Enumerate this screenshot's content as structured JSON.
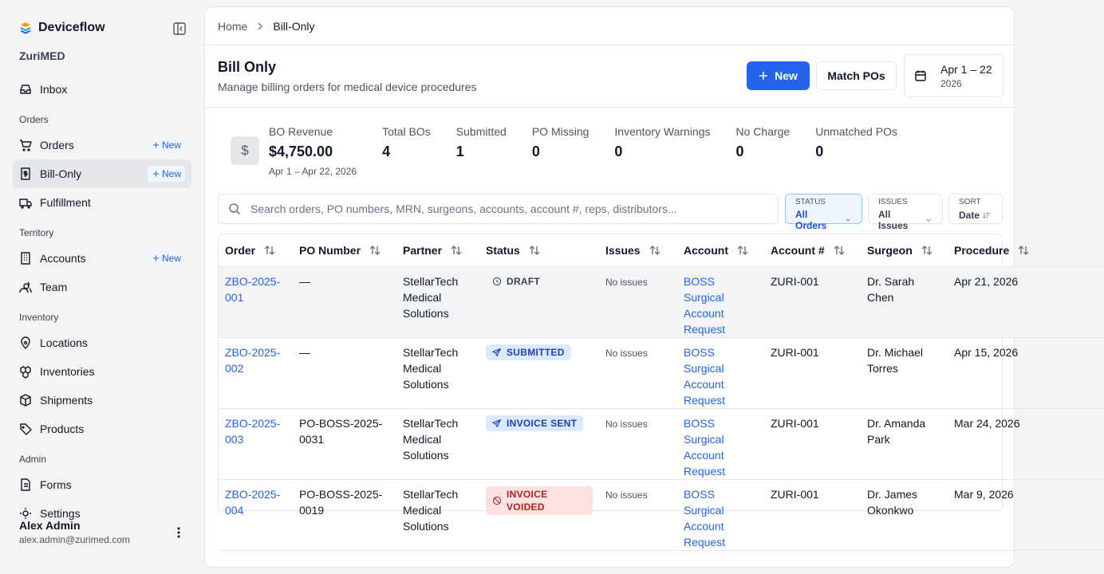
{
  "sidebar": {
    "brand": "Deviceflow",
    "org": "ZuriMED",
    "top": [
      {
        "label": "Inbox"
      }
    ],
    "sections": [
      {
        "title": "Orders",
        "items": [
          {
            "label": "Orders",
            "badge": "New"
          },
          {
            "label": "Bill-Only",
            "badge": "New",
            "active": true
          },
          {
            "label": "Fulfillment"
          }
        ]
      },
      {
        "title": "Territory",
        "items": [
          {
            "label": "Accounts",
            "badge": "New"
          },
          {
            "label": "Team"
          }
        ]
      },
      {
        "title": "Inventory",
        "items": [
          {
            "label": "Locations"
          },
          {
            "label": "Inventories"
          },
          {
            "label": "Shipments"
          },
          {
            "label": "Products"
          }
        ]
      },
      {
        "title": "Admin",
        "items": [
          {
            "label": "Forms"
          },
          {
            "label": "Settings"
          }
        ]
      }
    ],
    "user": {
      "name": "Alex Admin",
      "email": "alex.admin@zurimed.com"
    }
  },
  "breadcrumb": [
    "Home",
    "Bill-Only"
  ],
  "header": {
    "title": "Bill Only",
    "subtitle": "Manage billing orders for medical device procedures",
    "new_button": "New",
    "match_button": "Match POs",
    "date_range": "Apr 1 – 22",
    "date_year": "2026"
  },
  "stats": [
    {
      "label": "BO Revenue",
      "value": "$4,750.00",
      "note": "Apr 1 – Apr 22, 2026"
    },
    {
      "label": "Total BOs",
      "value": 4
    },
    {
      "label": "Submitted",
      "value": 1
    },
    {
      "label": "PO Missing",
      "value": 0
    },
    {
      "label": "Inventory Warnings",
      "value": 0
    },
    {
      "label": "No Charge",
      "value": 0
    },
    {
      "label": "Unmatched POs",
      "value": 0
    }
  ],
  "search": {
    "placeholder": "Search orders, PO numbers, MRN, surgeons, accounts, account #, reps, distributors..."
  },
  "filters": [
    {
      "label": "STATUS",
      "value": "All Orders",
      "active": true
    },
    {
      "label": "ISSUES",
      "value": "All Issues"
    },
    {
      "label": "SORT",
      "value": "Date"
    }
  ],
  "table": {
    "columns": [
      "Order",
      "PO Number",
      "Partner",
      "Status",
      "Issues",
      "Account",
      "Account #",
      "Surgeon",
      "Procedure"
    ],
    "rows": [
      {
        "cells": [
          "ZBO-2025-001",
          "—",
          "StellarTech Medical Solutions",
          "DRAFT",
          "No issues",
          "BOSS Surgical Account Request",
          "ZURI-001",
          "Dr. Sarah Chen",
          "Apr 21, 2026"
        ],
        "status_color": "#374151",
        "status_bg": "transparent",
        "highlight": true
      },
      {
        "cells": [
          "ZBO-2025-002",
          "—",
          "StellarTech Medical Solutions",
          "SUBMITTED",
          "No issues",
          "BOSS Surgical Account Request",
          "ZURI-001",
          "Dr. Michael Torres",
          "Apr 15, 2026"
        ],
        "status_color": "#1e40af",
        "status_bg": "#dbeafe"
      },
      {
        "cells": [
          "ZBO-2025-003",
          "PO-BOSS-2025-0031",
          "StellarTech Medical Solutions",
          "INVOICE SENT",
          "No issues",
          "BOSS Surgical Account Request",
          "ZURI-001",
          "Dr. Amanda Park",
          "Mar 24, 2026"
        ],
        "status_color": "#1e40af",
        "status_bg": "#dbeafe"
      },
      {
        "cells": [
          "ZBO-2025-004",
          "PO-BOSS-2025-0019",
          "StellarTech Medical Solutions",
          "INVOICE VOIDED",
          "No issues",
          "BOSS Surgical Account Request",
          "ZURI-001",
          "Dr. James Okonkwo",
          "Mar 9, 2026"
        ],
        "status_color": "#b91c1c",
        "status_bg": "#fee2e2"
      }
    ]
  }
}
